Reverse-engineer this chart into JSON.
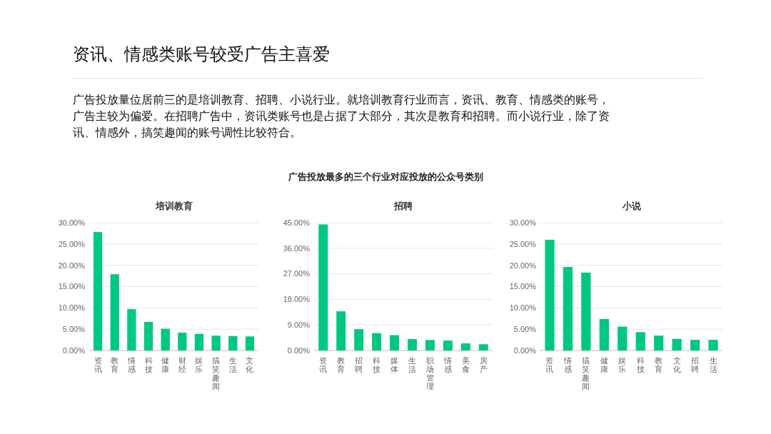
{
  "chart_data": [
    {
      "type": "other",
      "title": "资讯、情感类账号较受广告主喜爱",
      "subtitle": "广告投放量位居前三的是培训教育、招聘、小说行业。就培训教育行业而言，资讯、教育、情感类的账号，广告主较为偏爱。在招聘广告中，资讯类账号也是占据了大部分，其次是教育和招聘。而小说行业，除了资讯、情感外，搞笑趣闻的账号调性比较符合。",
      "annotations": [
        "广告投放最多的三个行业对应投放的公众号类别"
      ]
    },
    {
      "type": "bar",
      "title": "培训教育",
      "categories": [
        "资讯",
        "教育",
        "情感",
        "科技",
        "健康",
        "财经",
        "娱乐",
        "搞笑趣闻",
        "生活",
        "文化"
      ],
      "values": [
        27.8,
        17.9,
        9.7,
        6.7,
        5.1,
        4.2,
        3.9,
        3.5,
        3.4,
        3.3
      ],
      "color": "#00c880",
      "ylim": [
        0,
        30
      ],
      "yticks": [
        {
          "value": 0,
          "label": "0.00%"
        },
        {
          "value": 5,
          "label": "5.00%"
        },
        {
          "value": 10,
          "label": "10.00%"
        },
        {
          "value": 15,
          "label": "15.00%"
        },
        {
          "value": 20,
          "label": "20.00%"
        },
        {
          "value": 25,
          "label": "25.00%"
        },
        {
          "value": 30,
          "label": "30.00%"
        }
      ],
      "grid": "y"
    },
    {
      "type": "bar",
      "title": "招聘",
      "categories": [
        "资讯",
        "教育",
        "招聘",
        "科技",
        "媒体",
        "生活",
        "职场管理",
        "情感",
        "美食",
        "房产"
      ],
      "values": [
        44.4,
        13.8,
        7.5,
        6.1,
        5.4,
        4.0,
        3.7,
        3.5,
        2.5,
        2.2
      ],
      "color": "#00c880",
      "ylim": [
        0,
        45
      ],
      "yticks": [
        {
          "value": 0,
          "label": "0.00%"
        },
        {
          "value": 9,
          "label": "9.00%"
        },
        {
          "value": 18,
          "label": "18.00%"
        },
        {
          "value": 27,
          "label": "27.00%"
        },
        {
          "value": 36,
          "label": "36.00%"
        },
        {
          "value": 45,
          "label": "45.00%"
        }
      ],
      "grid": "y"
    },
    {
      "type": "bar",
      "title": "小说",
      "categories": [
        "资讯",
        "情感",
        "搞笑趣闻",
        "健康",
        "娱乐",
        "科技",
        "教育",
        "文化",
        "招聘",
        "生活"
      ],
      "values": [
        26.0,
        19.6,
        18.3,
        7.4,
        5.6,
        4.3,
        3.5,
        2.7,
        2.5,
        2.5
      ],
      "color": "#00c880",
      "ylim": [
        0,
        30
      ],
      "yticks": [
        {
          "value": 0,
          "label": "0.00%"
        },
        {
          "value": 5,
          "label": "5.00%"
        },
        {
          "value": 10,
          "label": "10.00%"
        },
        {
          "value": 15,
          "label": "15.00%"
        },
        {
          "value": 20,
          "label": "20.00%"
        },
        {
          "value": 25,
          "label": "25.00%"
        },
        {
          "value": 30,
          "label": "30.00%"
        }
      ],
      "grid": "y"
    }
  ]
}
